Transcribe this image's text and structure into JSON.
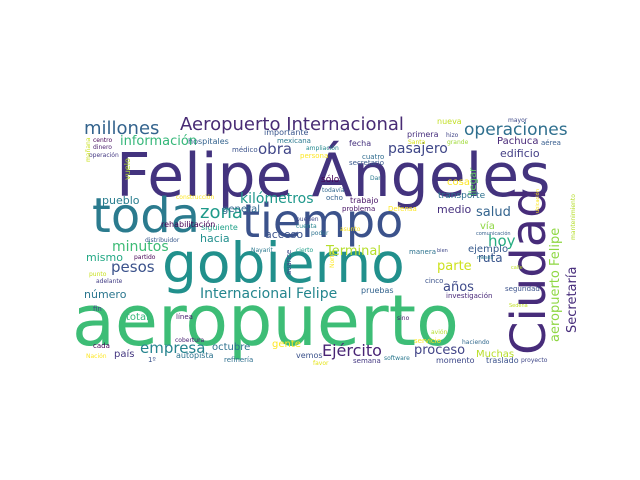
{
  "words": [
    {
      "text": "aeropuerto",
      "color": "#3dbd76"
    },
    {
      "text": "Felipe Ángeles",
      "color": "#43337e"
    },
    {
      "text": "gobierno",
      "color": "#21908c"
    },
    {
      "text": "tiempo",
      "color": "#3b528b"
    },
    {
      "text": "Ciudad",
      "color": "#472c7a"
    },
    {
      "text": "toda",
      "color": "#2b7b8e"
    },
    {
      "text": "Aeropuerto Internacional",
      "color": "#482b74"
    },
    {
      "text": "millones",
      "color": "#33638d"
    },
    {
      "text": "operaciones",
      "color": "#2e6f8e"
    },
    {
      "text": "información",
      "color": "#35b779"
    },
    {
      "text": "zona",
      "color": "#1f9a8a"
    },
    {
      "text": "obra",
      "color": "#404688"
    },
    {
      "text": "pasajero",
      "color": "#3f4788"
    },
    {
      "text": "kilómetros",
      "color": "#1f988b"
    },
    {
      "text": "Ejército",
      "color": "#482374"
    },
    {
      "text": "Internacional Felipe",
      "color": "#24868e"
    },
    {
      "text": "empresa",
      "color": "#25838e"
    },
    {
      "text": "pesos",
      "color": "#3b528b"
    },
    {
      "text": "minutos",
      "color": "#3cbb75"
    },
    {
      "text": "hoy",
      "color": "#26ad81"
    },
    {
      "text": "salud",
      "color": "#33638d"
    },
    {
      "text": "Secretaría",
      "color": "#472d7b"
    },
    {
      "text": "aeropuerto Felipe",
      "color": "#8fd744"
    },
    {
      "text": "Terminal",
      "color": "#b5de2b"
    },
    {
      "text": "parte",
      "color": "#cde11d"
    },
    {
      "text": "proceso",
      "color": "#414487"
    },
    {
      "text": "años",
      "color": "#3e4a89"
    },
    {
      "text": "ruta",
      "color": "#39558c"
    },
    {
      "text": "edificio",
      "color": "#433e85"
    },
    {
      "text": "acceso",
      "color": "#3b528b"
    },
    {
      "text": "hacia",
      "color": "#218f8d"
    },
    {
      "text": "mismo",
      "color": "#22a884"
    },
    {
      "text": "pueblo",
      "color": "#287d8e"
    },
    {
      "text": "número",
      "color": "#2a768e"
    },
    {
      "text": "general",
      "color": "#31688e"
    },
    {
      "text": "medio",
      "color": "#46307e"
    },
    {
      "text": "ejemplo",
      "color": "#375a8c"
    },
    {
      "text": "octubre",
      "color": "#2c718e"
    },
    {
      "text": "gente",
      "color": "#fde725"
    },
    {
      "text": "Pachuca",
      "color": "#482878"
    },
    {
      "text": "llegar",
      "color": "#5ec962"
    },
    {
      "text": "Muchas",
      "color": "#b8de29"
    },
    {
      "text": "total",
      "color": "#35b779"
    },
    {
      "text": "país",
      "color": "#453781"
    },
    {
      "text": "vía",
      "color": "#8fd744"
    },
    {
      "text": "cosa",
      "color": "#fde725"
    },
    {
      "text": "sólo",
      "color": "#440154"
    },
    {
      "text": "transporte",
      "color": "#2d708e"
    },
    {
      "text": "importante",
      "color": "#39568c"
    },
    {
      "text": "primera",
      "color": "#472f7d"
    },
    {
      "text": "nueva",
      "color": "#c2df23"
    },
    {
      "text": "hizo",
      "color": "#414487"
    },
    {
      "text": "mayor",
      "color": "#3e4989"
    },
    {
      "text": "aérea",
      "color": "#365c8d"
    },
    {
      "text": "hospitales",
      "color": "#33638d"
    },
    {
      "text": "mexicana",
      "color": "#2a788e"
    },
    {
      "text": "médico",
      "color": "#3b528b"
    },
    {
      "text": "ampliación",
      "color": "#23898e"
    },
    {
      "text": "fecha",
      "color": "#46327e"
    },
    {
      "text": "cuatro",
      "color": "#2f6c8e"
    },
    {
      "text": "secretario",
      "color": "#38588c"
    },
    {
      "text": "persona",
      "color": "#fde725"
    },
    {
      "text": "Santa",
      "color": "#d8e219"
    },
    {
      "text": "grande",
      "color": "#a0da39"
    },
    {
      "text": "centro",
      "color": "#440154"
    },
    {
      "text": "dinero",
      "color": "#481a6c"
    },
    {
      "text": "operación",
      "color": "#443983"
    },
    {
      "text": "vuelo",
      "color": "#b5de2b"
    },
    {
      "text": "mañana",
      "color": "#cae11f"
    },
    {
      "text": "siguiente",
      "color": "#1fa088"
    },
    {
      "text": "construcción",
      "color": "#fde725"
    },
    {
      "text": "rehabilitación",
      "color": "#440154"
    },
    {
      "text": "todavía",
      "color": "#31688e"
    },
    {
      "text": "ocho",
      "color": "#34618d"
    },
    {
      "text": "trabajo",
      "color": "#481467"
    },
    {
      "text": "problema",
      "color": "#471365"
    },
    {
      "text": "Defensa",
      "color": "#fde725"
    },
    {
      "text": "pueden",
      "color": "#3e4a89"
    },
    {
      "text": "cuenta",
      "color": "#25848e"
    },
    {
      "text": "poder",
      "color": "#2c728e"
    },
    {
      "text": "asunto",
      "color": "#fde725"
    },
    {
      "text": "partido",
      "color": "#440154"
    },
    {
      "text": "Nayarit",
      "color": "#2a788e"
    },
    {
      "text": "cierto",
      "color": "#1f9e89"
    },
    {
      "text": "avance",
      "color": "#3e4a89"
    },
    {
      "text": "distribuidor",
      "color": "#38588c"
    },
    {
      "text": "línea",
      "color": "#481c6e"
    },
    {
      "text": "adelante",
      "color": "#433e85"
    },
    {
      "text": "punto",
      "color": "#c8e020"
    },
    {
      "text": "fin",
      "color": "#404688"
    },
    {
      "text": "cobertura",
      "color": "#482173"
    },
    {
      "text": "cada",
      "color": "#440154"
    },
    {
      "text": "autopista",
      "color": "#2c728e"
    },
    {
      "text": "1º",
      "color": "#3b528b"
    },
    {
      "text": "refinería",
      "color": "#2e6f8e"
    },
    {
      "text": "Nación",
      "color": "#fde725"
    },
    {
      "text": "vemos",
      "color": "#3b528b"
    },
    {
      "text": "favor",
      "color": "#e5e419"
    },
    {
      "text": "semana",
      "color": "#453882"
    },
    {
      "text": "software",
      "color": "#2a788e"
    },
    {
      "text": "momento",
      "color": "#3e4989"
    },
    {
      "text": "traslado",
      "color": "#3b528b"
    },
    {
      "text": "proyecto",
      "color": "#3f4788"
    },
    {
      "text": "haciendo",
      "color": "#31688e"
    },
    {
      "text": "servicio",
      "color": "#fde725"
    },
    {
      "text": "avión",
      "color": "#b5de2b"
    },
    {
      "text": "sino",
      "color": "#481668"
    },
    {
      "text": "pruebas",
      "color": "#33638d"
    },
    {
      "text": "cinco",
      "color": "#3b528b"
    },
    {
      "text": "investigación",
      "color": "#482878"
    },
    {
      "text": "seguridad",
      "color": "#3b528b"
    },
    {
      "text": "manera",
      "color": "#2c728e"
    },
    {
      "text": "bien",
      "color": "#3f4788"
    },
    {
      "text": "meses",
      "color": "#2a788e"
    },
    {
      "text": "calle",
      "color": "#bddf26"
    },
    {
      "text": "comunicación",
      "color": "#355f8d"
    },
    {
      "text": "Sedena",
      "color": "#c0df25"
    },
    {
      "text": "mantenimiento",
      "color": "#b5de2b"
    },
    {
      "text": "Norte",
      "color": "#fde725"
    },
    {
      "text": "Dar",
      "color": "#2a788e"
    },
    {
      "text": "ubicación",
      "color": "#fde725"
    }
  ]
}
